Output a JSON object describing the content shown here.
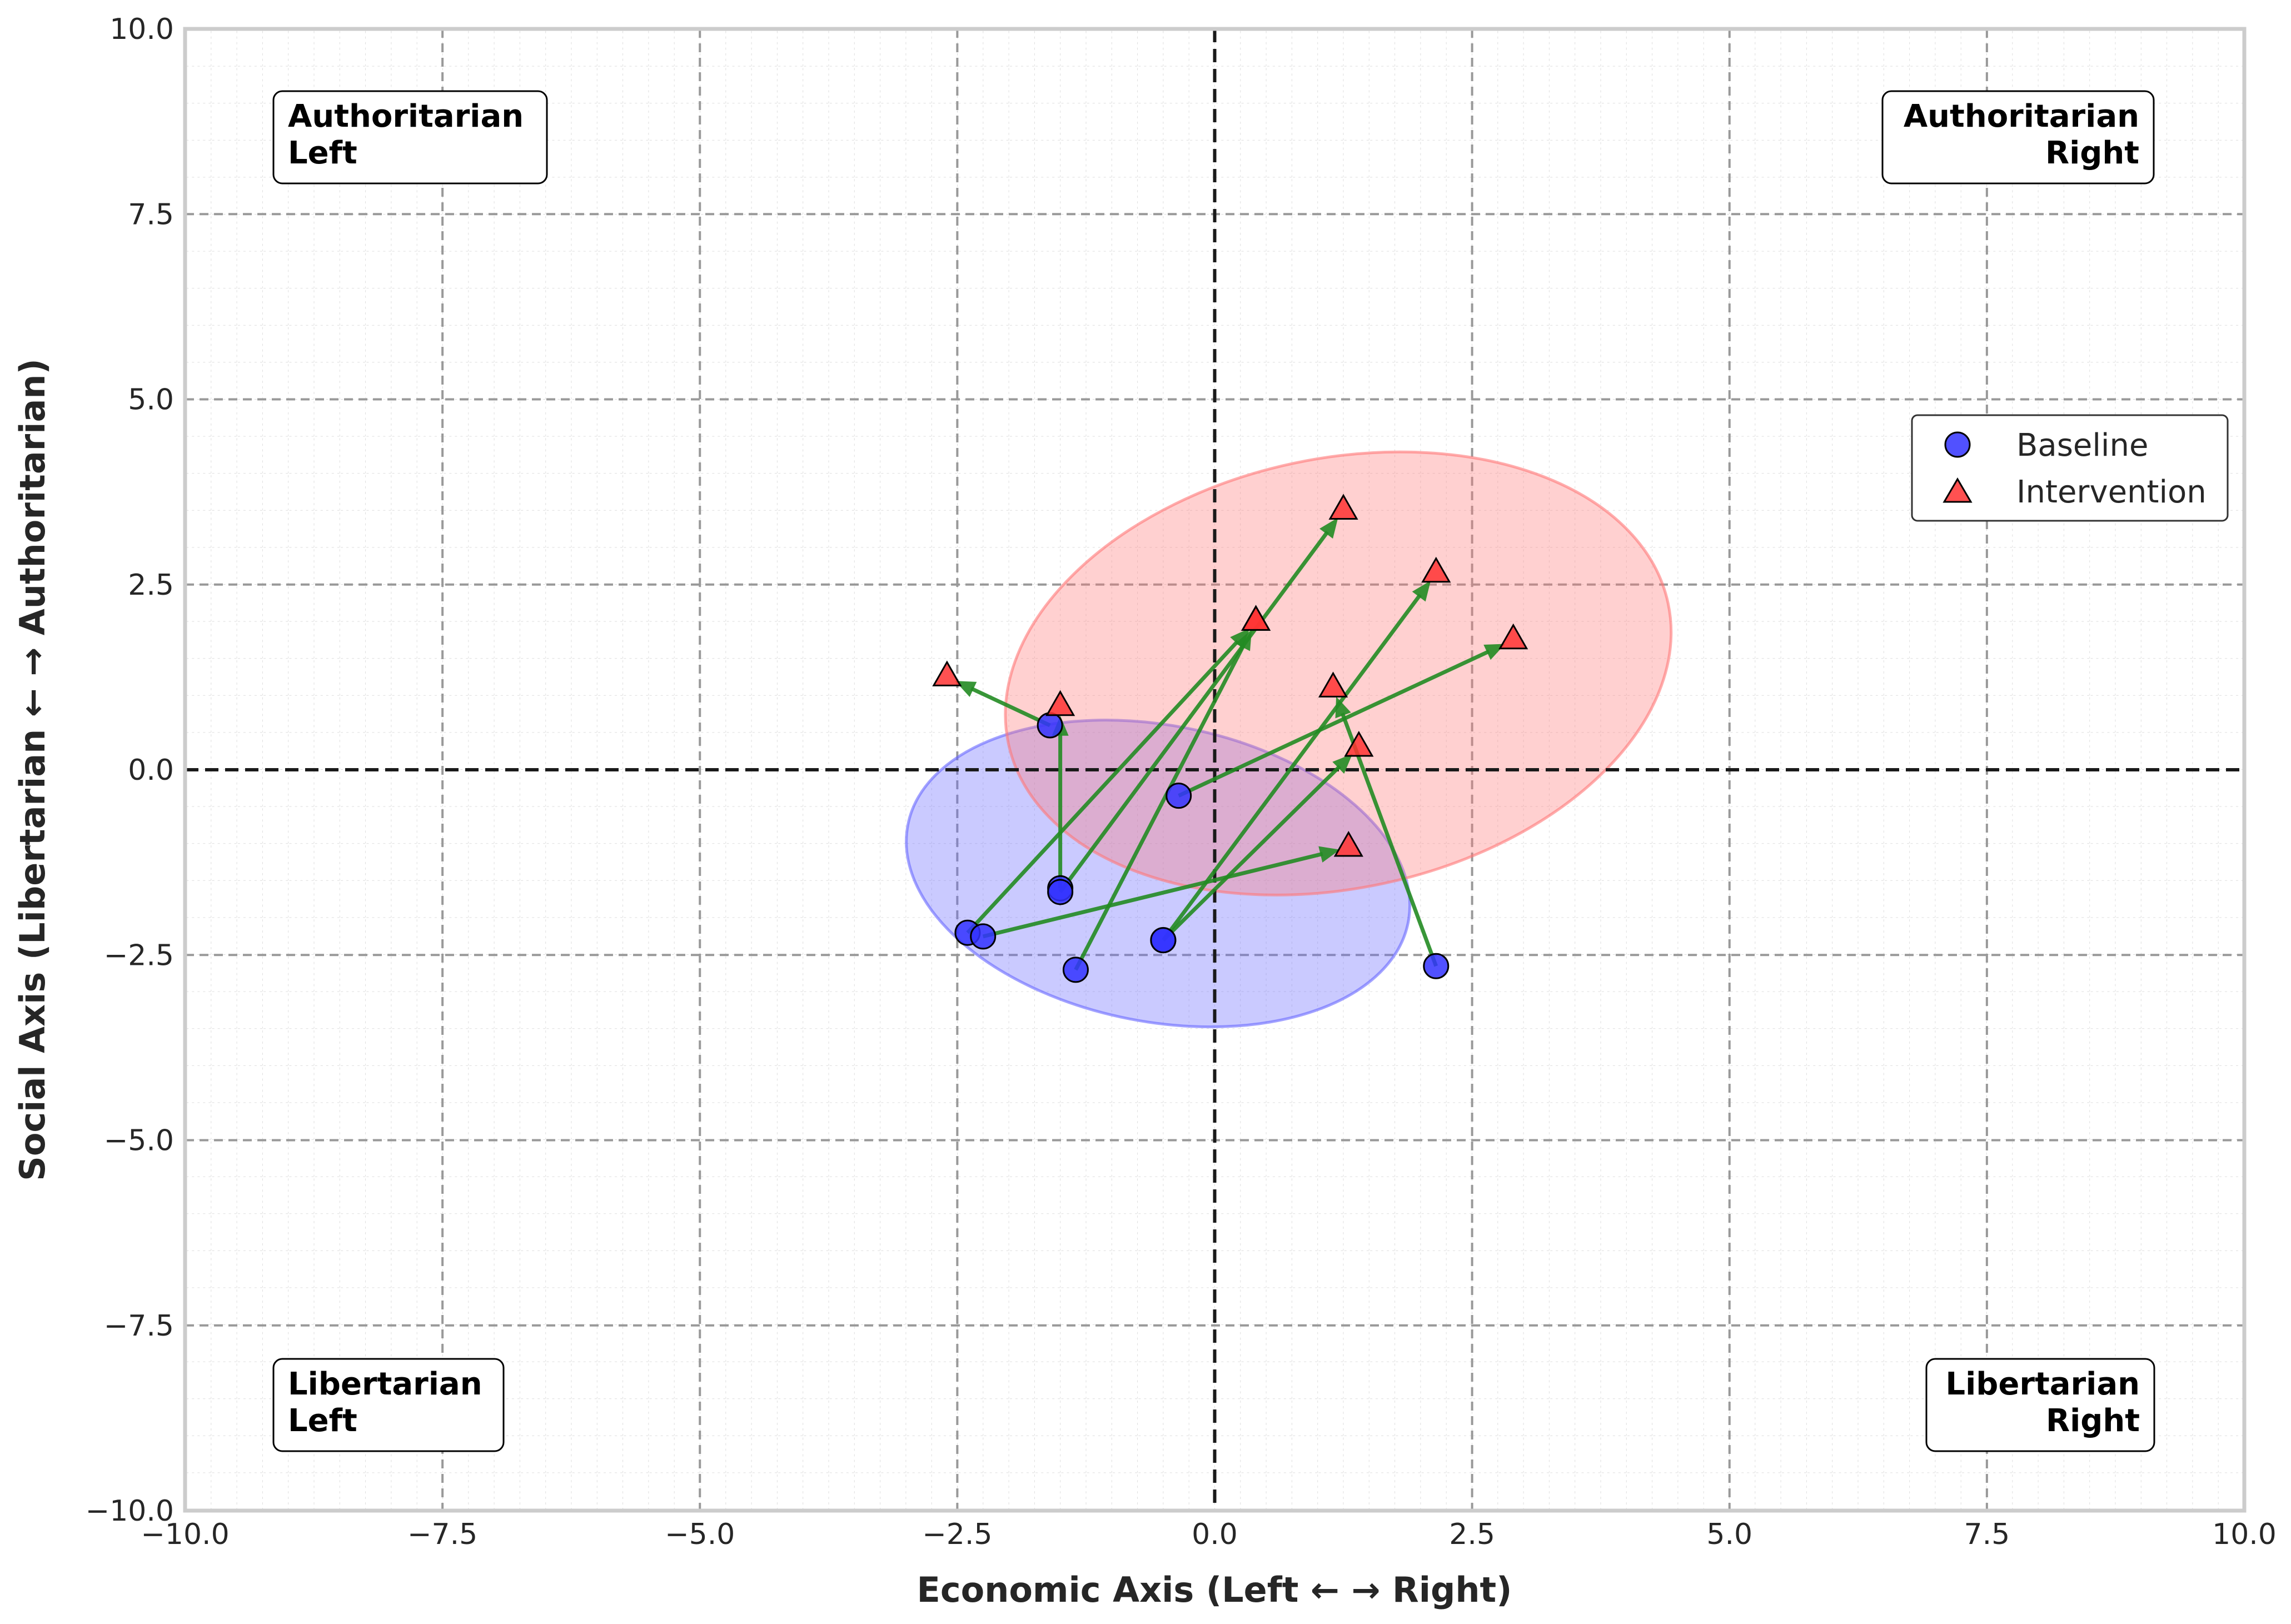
{
  "chart_data": {
    "type": "scatter",
    "title": "",
    "xlabel": "Economic Axis (Left ← → Right)",
    "ylabel": "Social Axis (Libertarian ← → Authoritarian)",
    "xlim": [
      -10,
      10
    ],
    "ylim": [
      -10,
      10
    ],
    "xticks": [
      -10,
      -7.5,
      -5,
      -2.5,
      0,
      2.5,
      5,
      7.5,
      10
    ],
    "yticks": [
      -10,
      -7.5,
      -5,
      -2.5,
      0,
      2.5,
      5,
      7.5,
      10
    ],
    "xtick_labels": [
      "−10.0",
      "−7.5",
      "−5.0",
      "−2.5",
      "0.0",
      "2.5",
      "5.0",
      "7.5",
      "10.0"
    ],
    "ytick_labels": [
      "−10.0",
      "−7.5",
      "−5.0",
      "−2.5",
      "0.0",
      "2.5",
      "5.0",
      "7.5",
      "10.0"
    ],
    "grid": true,
    "legend_position": "right",
    "quadrant_labels": [
      {
        "name": "authoritarian-left",
        "lines": [
          "Authoritarian",
          "Left"
        ],
        "align": "left",
        "corner": "top-left"
      },
      {
        "name": "authoritarian-right",
        "lines": [
          "Authoritarian",
          "Right"
        ],
        "align": "right",
        "corner": "top-right"
      },
      {
        "name": "libertarian-left",
        "lines": [
          "Libertarian",
          "Left"
        ],
        "align": "left",
        "corner": "bottom-left"
      },
      {
        "name": "libertarian-right",
        "lines": [
          "Libertarian",
          "Right"
        ],
        "align": "right",
        "corner": "bottom-right"
      }
    ],
    "series": [
      {
        "name": "Baseline",
        "marker": "circle",
        "color": "#3333ff",
        "points": [
          [
            -2.4,
            -2.2
          ],
          [
            -1.6,
            0.6
          ],
          [
            -2.25,
            -2.25
          ],
          [
            -1.5,
            -1.6
          ],
          [
            -1.5,
            -1.65
          ],
          [
            -1.35,
            -2.7
          ],
          [
            -0.5,
            -2.3
          ],
          [
            -0.5,
            -2.3
          ],
          [
            -0.35,
            -0.35
          ],
          [
            2.15,
            -2.65
          ]
        ]
      },
      {
        "name": "Intervention",
        "marker": "triangle",
        "color": "#ff3333",
        "points": [
          [
            0.4,
            2.0
          ],
          [
            -2.6,
            1.25
          ],
          [
            1.3,
            -1.05
          ],
          [
            -1.5,
            0.85
          ],
          [
            1.25,
            3.5
          ],
          [
            0.4,
            2.0
          ],
          [
            2.15,
            2.65
          ],
          [
            1.4,
            0.3
          ],
          [
            2.9,
            1.75
          ],
          [
            1.15,
            1.1
          ]
        ]
      }
    ],
    "arrows": [
      {
        "from": [
          -2.4,
          -2.2
        ],
        "to": [
          0.4,
          2.0
        ]
      },
      {
        "from": [
          -1.6,
          0.6
        ],
        "to": [
          -2.6,
          1.25
        ]
      },
      {
        "from": [
          -2.25,
          -2.25
        ],
        "to": [
          1.3,
          -1.05
        ]
      },
      {
        "from": [
          -1.5,
          -1.6
        ],
        "to": [
          -1.5,
          0.85
        ]
      },
      {
        "from": [
          -1.5,
          -1.65
        ],
        "to": [
          1.25,
          3.5
        ]
      },
      {
        "from": [
          -1.35,
          -2.7
        ],
        "to": [
          0.4,
          2.0
        ]
      },
      {
        "from": [
          -0.5,
          -2.3
        ],
        "to": [
          2.15,
          2.65
        ]
      },
      {
        "from": [
          -0.5,
          -2.3
        ],
        "to": [
          1.4,
          0.3
        ]
      },
      {
        "from": [
          -0.35,
          -0.35
        ],
        "to": [
          2.9,
          1.75
        ]
      },
      {
        "from": [
          2.15,
          -2.65
        ],
        "to": [
          1.15,
          1.1
        ]
      }
    ],
    "arrow_color": "#228b22",
    "ellipses": [
      {
        "name": "baseline-spread",
        "center": [
          -0.55,
          -1.4
        ],
        "width": 4.95,
        "height": 4.0,
        "angle_deg": -11,
        "color": "#6666ff"
      },
      {
        "name": "intervention-spread",
        "center": [
          1.2,
          1.3
        ],
        "width": 6.55,
        "height": 5.8,
        "angle_deg": 12,
        "color": "#ff7777"
      }
    ]
  }
}
